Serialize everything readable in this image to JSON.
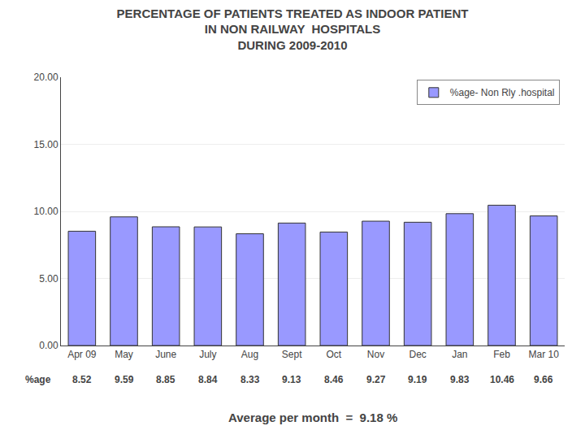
{
  "chart_data": {
    "type": "bar",
    "title": "PERCENTAGE OF PATIENTS TREATED AS INDOOR PATIENT\nIN NON RAILWAY  HOSPITALS\nDURING 2009-2010",
    "categories": [
      "Apr 09",
      "May",
      "June",
      "July",
      "Aug",
      "Sept",
      "Oct",
      "Nov",
      "Dec",
      "Jan",
      "Feb",
      "Mar 10"
    ],
    "series": [
      {
        "name": "%age- Non Rly .hospital",
        "color": "#9999FF",
        "values": [
          8.52,
          9.59,
          8.85,
          8.84,
          8.33,
          9.13,
          8.46,
          9.27,
          9.19,
          9.83,
          10.46,
          9.66
        ]
      }
    ],
    "ylim": [
      0,
      20
    ],
    "yticks": [
      {
        "value": 0,
        "label": "0.00"
      },
      {
        "value": 5,
        "label": "5.00"
      },
      {
        "value": 10,
        "label": "10.00"
      },
      {
        "value": 15,
        "label": "15.00"
      },
      {
        "value": 20,
        "label": "20.00"
      }
    ],
    "grid": true,
    "legend": "upper right",
    "data_labels": true,
    "annotations": [
      "%age",
      "Average per month  =  9.18 %"
    ]
  }
}
